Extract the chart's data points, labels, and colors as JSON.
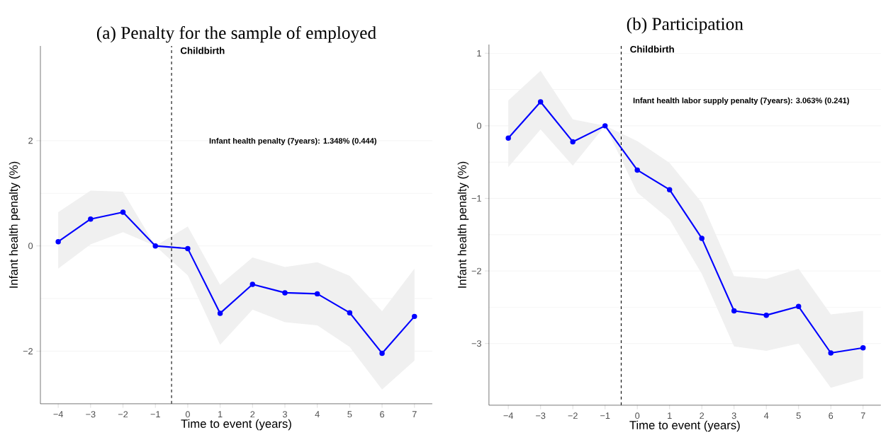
{
  "chart_data": [
    {
      "type": "line",
      "title": "(a) Penalty for the sample of employed",
      "xlabel": "Time to event (years)",
      "ylabel": "Infant health penalty  (%)",
      "x": [
        -4,
        -3,
        -2,
        -1,
        0,
        1,
        2,
        3,
        4,
        5,
        6,
        7
      ],
      "series": [
        {
          "color": "#0000ff",
          "values": [
            0.08,
            0.51,
            0.64,
            0,
            -0.05,
            -1.28,
            -0.73,
            -0.89,
            -0.91,
            -1.27,
            -2.04,
            -1.34
          ],
          "lower": [
            -0.43,
            0.03,
            0.26,
            0,
            -0.56,
            -1.88,
            -1.21,
            -1.45,
            -1.51,
            -1.92,
            -2.73,
            -2.18
          ],
          "upper": [
            0.64,
            1.05,
            1.03,
            0,
            0.37,
            -0.74,
            -0.22,
            -0.4,
            -0.31,
            -0.57,
            -1.24,
            -0.43
          ]
        }
      ],
      "marker": "circle",
      "line_style": "solid",
      "grid": "y",
      "xlim": [
        -4.55,
        7.55
      ],
      "ylim": [
        -3,
        3.8
      ],
      "xticks": [
        {
          "value": -4,
          "label": "−4"
        },
        {
          "value": -3,
          "label": "−3"
        },
        {
          "value": -2,
          "label": "−2"
        },
        {
          "value": -1,
          "label": "−1"
        },
        0,
        1,
        2,
        3,
        4,
        5,
        6,
        7
      ],
      "yticks": [
        {
          "value": -2,
          "label": "−2"
        },
        0,
        2
      ],
      "ref_lines": [
        {
          "axis": "x",
          "value": -0.5,
          "label": "Childbirth",
          "color": "#000000",
          "line_style": "dashed"
        }
      ],
      "annotations": [
        "Infant health  penalty (7years): 1.348% (0.444)"
      ]
    },
    {
      "type": "line",
      "title": "(b) Participation",
      "xlabel": "Time to event (years)",
      "ylabel": "Infant health penalty  (%)",
      "x": [
        -4,
        -3,
        -2,
        -1,
        0,
        1,
        2,
        3,
        4,
        5,
        6,
        7
      ],
      "series": [
        {
          "color": "#0000ff",
          "values": [
            -0.17,
            0.33,
            -0.22,
            0,
            -0.61,
            -0.88,
            -1.55,
            -2.55,
            -2.61,
            -2.49,
            -3.13,
            -3.06
          ],
          "lower": [
            -0.57,
            -0.05,
            -0.55,
            0,
            -0.92,
            -1.29,
            -2.04,
            -3.04,
            -3.1,
            -3,
            -3.61,
            -3.48
          ],
          "upper": [
            0.35,
            0.76,
            0.09,
            0,
            -0.21,
            -0.51,
            -1.06,
            -2.07,
            -2.11,
            -1.97,
            -2.6,
            -2.55
          ]
        }
      ],
      "marker": "circle",
      "line_style": "solid",
      "grid": "y",
      "xlim": [
        -4.6,
        7.55
      ],
      "ylim": [
        -3.85,
        1.12
      ],
      "xticks": [
        {
          "value": -4,
          "label": "−4"
        },
        {
          "value": -3,
          "label": "−3"
        },
        {
          "value": -2,
          "label": "−2"
        },
        {
          "value": -1,
          "label": "−1"
        },
        0,
        1,
        2,
        3,
        4,
        5,
        6,
        7
      ],
      "yticks": [
        {
          "value": -3,
          "label": "−3"
        },
        {
          "value": -2,
          "label": "−2"
        },
        {
          "value": -1,
          "label": "−1"
        },
        0,
        1
      ],
      "ref_lines": [
        {
          "axis": "x",
          "value": -0.5,
          "label": "Childbirth",
          "color": "#000000",
          "line_style": "dashed"
        }
      ],
      "annotations": [
        "Infant health labor supply penalty (7years): 3.063% (0.241)"
      ]
    }
  ]
}
